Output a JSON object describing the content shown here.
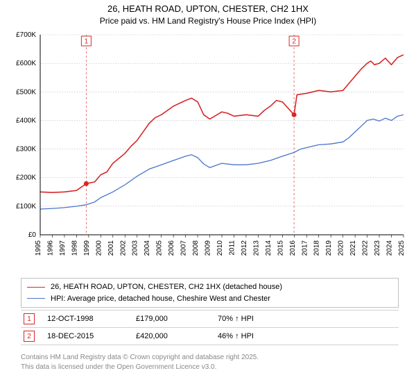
{
  "title": {
    "line1": "26, HEATH ROAD, UPTON, CHESTER, CH2 1HX",
    "line2": "Price paid vs. HM Land Registry's House Price Index (HPI)"
  },
  "chart": {
    "type": "line",
    "background_color": "#ffffff",
    "grid_color": "#b8b8b8",
    "axis_color": "#000000",
    "label_fontsize": 10,
    "y": {
      "label_prefix": "£",
      "min": 0,
      "max": 700000,
      "step": 100000,
      "ticks": [
        "£0",
        "£100K",
        "£200K",
        "£300K",
        "£400K",
        "£500K",
        "£600K",
        "£700K"
      ]
    },
    "x": {
      "min": 1995,
      "max": 2025,
      "ticks": [
        1995,
        1996,
        1997,
        1998,
        1999,
        2000,
        2001,
        2002,
        2003,
        2004,
        2005,
        2006,
        2007,
        2008,
        2009,
        2010,
        2011,
        2012,
        2013,
        2014,
        2015,
        2016,
        2017,
        2018,
        2019,
        2020,
        2021,
        2022,
        2023,
        2024,
        2025
      ]
    },
    "series": [
      {
        "name": "price_paid",
        "color": "#d62728",
        "line_width": 1.6,
        "data": [
          [
            1995,
            150000
          ],
          [
            1996,
            148000
          ],
          [
            1997,
            150000
          ],
          [
            1998,
            155000
          ],
          [
            1998.8,
            179000
          ],
          [
            1999.5,
            185000
          ],
          [
            2000,
            210000
          ],
          [
            2000.5,
            220000
          ],
          [
            2001,
            250000
          ],
          [
            2002,
            285000
          ],
          [
            2002.5,
            310000
          ],
          [
            2003,
            330000
          ],
          [
            2004,
            390000
          ],
          [
            2004.5,
            410000
          ],
          [
            2005,
            420000
          ],
          [
            2006,
            450000
          ],
          [
            2007,
            470000
          ],
          [
            2007.5,
            478000
          ],
          [
            2008,
            465000
          ],
          [
            2008.5,
            420000
          ],
          [
            2009,
            405000
          ],
          [
            2010,
            430000
          ],
          [
            2010.5,
            425000
          ],
          [
            2011,
            415000
          ],
          [
            2012,
            420000
          ],
          [
            2013,
            415000
          ],
          [
            2013.5,
            435000
          ],
          [
            2014,
            450000
          ],
          [
            2014.5,
            470000
          ],
          [
            2015,
            465000
          ],
          [
            2015.96,
            420000
          ],
          [
            2016.2,
            490000
          ],
          [
            2017,
            495000
          ],
          [
            2018,
            505000
          ],
          [
            2019,
            500000
          ],
          [
            2020,
            505000
          ],
          [
            2020.5,
            530000
          ],
          [
            2021,
            555000
          ],
          [
            2021.5,
            580000
          ],
          [
            2022,
            600000
          ],
          [
            2022.3,
            608000
          ],
          [
            2022.6,
            595000
          ],
          [
            2023,
            600000
          ],
          [
            2023.5,
            618000
          ],
          [
            2024,
            595000
          ],
          [
            2024.5,
            620000
          ],
          [
            2025,
            630000
          ]
        ]
      },
      {
        "name": "hpi",
        "color": "#4a74c9",
        "line_width": 1.3,
        "data": [
          [
            1995,
            90000
          ],
          [
            1996,
            92000
          ],
          [
            1997,
            95000
          ],
          [
            1998,
            100000
          ],
          [
            1998.8,
            105000
          ],
          [
            1999.5,
            115000
          ],
          [
            2000,
            130000
          ],
          [
            2001,
            150000
          ],
          [
            2002,
            175000
          ],
          [
            2003,
            205000
          ],
          [
            2004,
            230000
          ],
          [
            2005,
            245000
          ],
          [
            2006,
            260000
          ],
          [
            2007,
            275000
          ],
          [
            2007.5,
            280000
          ],
          [
            2008,
            270000
          ],
          [
            2008.5,
            248000
          ],
          [
            2009,
            235000
          ],
          [
            2010,
            250000
          ],
          [
            2011,
            245000
          ],
          [
            2012,
            245000
          ],
          [
            2013,
            250000
          ],
          [
            2014,
            260000
          ],
          [
            2015,
            275000
          ],
          [
            2015.96,
            288000
          ],
          [
            2016.5,
            300000
          ],
          [
            2017,
            305000
          ],
          [
            2018,
            315000
          ],
          [
            2019,
            318000
          ],
          [
            2020,
            325000
          ],
          [
            2020.5,
            340000
          ],
          [
            2021,
            360000
          ],
          [
            2021.5,
            380000
          ],
          [
            2022,
            400000
          ],
          [
            2022.5,
            405000
          ],
          [
            2023,
            398000
          ],
          [
            2023.5,
            408000
          ],
          [
            2024,
            400000
          ],
          [
            2024.5,
            415000
          ],
          [
            2025,
            420000
          ]
        ]
      }
    ],
    "sale_markers": [
      {
        "label": "1",
        "x": 1998.8,
        "y": 179000,
        "vline_color": "#d62728"
      },
      {
        "label": "2",
        "x": 2015.96,
        "y": 420000,
        "vline_color": "#d62728"
      }
    ],
    "vline_dash": "3,3"
  },
  "legend": {
    "items": [
      {
        "color": "#d62728",
        "width": 1.6,
        "label": "26, HEATH ROAD, UPTON, CHESTER, CH2 1HX (detached house)"
      },
      {
        "color": "#4a74c9",
        "width": 1.3,
        "label": "HPI: Average price, detached house, Cheshire West and Chester"
      }
    ]
  },
  "sales": [
    {
      "badge": "1",
      "date": "12-OCT-1998",
      "price": "£179,000",
      "pct": "70% ↑ HPI"
    },
    {
      "badge": "2",
      "date": "18-DEC-2015",
      "price": "£420,000",
      "pct": "46% ↑ HPI"
    }
  ],
  "footer": {
    "line1": "Contains HM Land Registry data © Crown copyright and database right 2025.",
    "line2": "This data is licensed under the Open Government Licence v3.0."
  },
  "colors": {
    "badge_border": "#d62728",
    "footer_text": "#888888"
  }
}
